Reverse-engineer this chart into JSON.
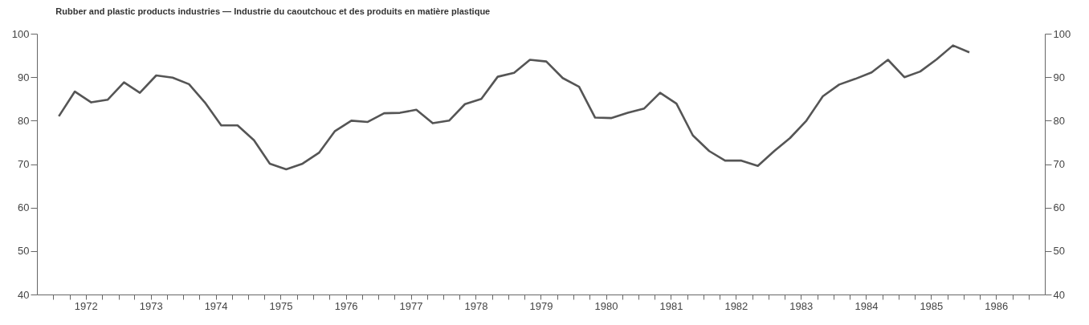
{
  "chart_data": {
    "type": "line",
    "title": "Rubber and plastic products industries — Industrie du caoutchouc et des produits en matière plastique",
    "x": [
      "1972-02",
      "1972-05",
      "1972-08",
      "1972-11",
      "1973-02",
      "1973-05",
      "1973-08",
      "1973-11",
      "1974-02",
      "1974-05",
      "1974-08",
      "1974-11",
      "1975-02",
      "1975-05",
      "1975-08",
      "1975-11",
      "1976-02",
      "1976-05",
      "1976-08",
      "1976-11",
      "1977-02",
      "1977-05",
      "1977-08",
      "1977-11",
      "1978-02",
      "1978-05",
      "1978-08",
      "1978-11",
      "1979-02",
      "1979-05",
      "1979-08",
      "1979-11",
      "1980-02",
      "1980-05",
      "1980-08",
      "1980-11",
      "1981-02",
      "1981-05",
      "1981-08",
      "1981-11",
      "1982-02",
      "1982-05",
      "1982-08",
      "1982-11",
      "1983-02",
      "1983-05",
      "1983-08",
      "1983-11",
      "1984-02",
      "1984-05",
      "1984-08",
      "1984-11",
      "1985-02",
      "1985-05",
      "1985-08",
      "1985-11",
      "1986-02"
    ],
    "series": [
      {
        "color": "#555555",
        "values": [
          81.0,
          86.7,
          84.2,
          84.8,
          88.8,
          86.4,
          90.4,
          89.9,
          88.4,
          84.2,
          78.9,
          78.9,
          75.5,
          70.1,
          68.8,
          70.1,
          72.6,
          77.6,
          80.0,
          79.7,
          81.7,
          81.8,
          82.5,
          79.4,
          80.0,
          83.8,
          85.0,
          90.1,
          91.0,
          94.0,
          93.6,
          89.8,
          87.8,
          80.7,
          80.6,
          81.8,
          82.8,
          86.4,
          83.9,
          76.6,
          73.0,
          70.8,
          70.8,
          69.6,
          73.0,
          76.0,
          80.0,
          85.6,
          88.3,
          89.6,
          91.1,
          94.0,
          90.0,
          91.3,
          94.1,
          97.3,
          95.7
        ]
      }
    ],
    "xlim": [
      "1971-10-01",
      "1987-04-01"
    ],
    "xticks": [
      {
        "value": "1972-01-01",
        "label": null
      },
      {
        "value": "1972-04-01",
        "label": null
      },
      {
        "value": "1972-07-01",
        "label": "1972"
      },
      {
        "value": "1972-10-01",
        "label": null
      },
      {
        "value": "1973-01-01",
        "label": null
      },
      {
        "value": "1973-04-01",
        "label": null
      },
      {
        "value": "1973-07-01",
        "label": "1973"
      },
      {
        "value": "1973-10-01",
        "label": null
      },
      {
        "value": "1974-01-01",
        "label": null
      },
      {
        "value": "1974-04-01",
        "label": null
      },
      {
        "value": "1974-07-01",
        "label": "1974"
      },
      {
        "value": "1974-10-01",
        "label": null
      },
      {
        "value": "1975-01-01",
        "label": null
      },
      {
        "value": "1975-04-01",
        "label": null
      },
      {
        "value": "1975-07-01",
        "label": "1975"
      },
      {
        "value": "1975-10-01",
        "label": null
      },
      {
        "value": "1976-01-01",
        "label": null
      },
      {
        "value": "1976-04-01",
        "label": null
      },
      {
        "value": "1976-07-01",
        "label": "1976"
      },
      {
        "value": "1976-10-01",
        "label": null
      },
      {
        "value": "1977-01-01",
        "label": null
      },
      {
        "value": "1977-04-01",
        "label": null
      },
      {
        "value": "1977-07-01",
        "label": "1977"
      },
      {
        "value": "1977-10-01",
        "label": null
      },
      {
        "value": "1978-01-01",
        "label": null
      },
      {
        "value": "1978-04-01",
        "label": null
      },
      {
        "value": "1978-07-01",
        "label": "1978"
      },
      {
        "value": "1978-10-01",
        "label": null
      },
      {
        "value": "1979-01-01",
        "label": null
      },
      {
        "value": "1979-04-01",
        "label": null
      },
      {
        "value": "1979-07-01",
        "label": "1979"
      },
      {
        "value": "1979-10-01",
        "label": null
      },
      {
        "value": "1980-01-01",
        "label": null
      },
      {
        "value": "1980-04-01",
        "label": null
      },
      {
        "value": "1980-07-01",
        "label": "1980"
      },
      {
        "value": "1980-10-01",
        "label": null
      },
      {
        "value": "1981-01-01",
        "label": null
      },
      {
        "value": "1981-04-01",
        "label": null
      },
      {
        "value": "1981-07-01",
        "label": "1981"
      },
      {
        "value": "1981-10-01",
        "label": null
      },
      {
        "value": "1982-01-01",
        "label": null
      },
      {
        "value": "1982-04-01",
        "label": null
      },
      {
        "value": "1982-07-01",
        "label": "1982"
      },
      {
        "value": "1982-10-01",
        "label": null
      },
      {
        "value": "1983-01-01",
        "label": null
      },
      {
        "value": "1983-04-01",
        "label": null
      },
      {
        "value": "1983-07-01",
        "label": "1983"
      },
      {
        "value": "1983-10-01",
        "label": null
      },
      {
        "value": "1984-01-01",
        "label": null
      },
      {
        "value": "1984-04-01",
        "label": null
      },
      {
        "value": "1984-07-01",
        "label": "1984"
      },
      {
        "value": "1984-10-01",
        "label": null
      },
      {
        "value": "1985-01-01",
        "label": null
      },
      {
        "value": "1985-04-01",
        "label": null
      },
      {
        "value": "1985-07-01",
        "label": "1985"
      },
      {
        "value": "1985-10-01",
        "label": null
      },
      {
        "value": "1986-01-01",
        "label": null
      },
      {
        "value": "1986-04-01",
        "label": null
      },
      {
        "value": "1986-07-01",
        "label": "1986"
      },
      {
        "value": "1986-10-01",
        "label": null
      },
      {
        "value": "1987-01-01",
        "label": null
      }
    ],
    "ylim": [
      40,
      100
    ],
    "yticks": [
      40,
      50,
      60,
      70,
      80,
      90,
      100
    ],
    "y2lim": [
      40,
      100
    ],
    "y2ticks": [
      40,
      50,
      60,
      70,
      80,
      90,
      100
    ]
  }
}
